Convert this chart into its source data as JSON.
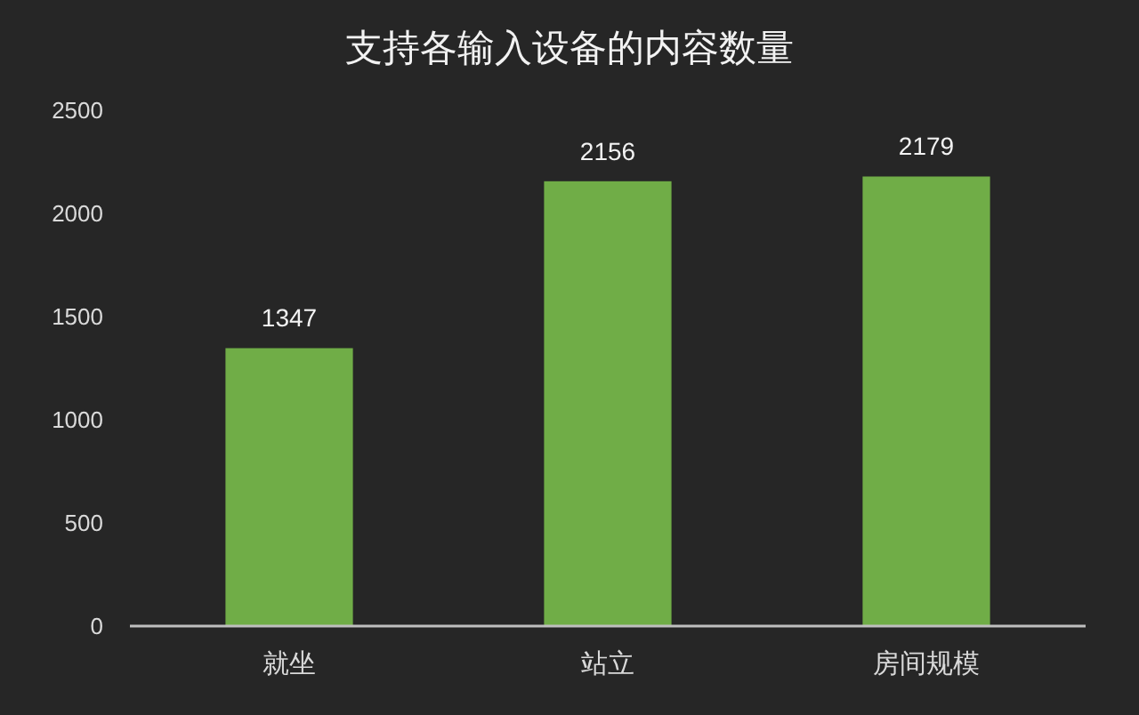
{
  "chart_data": {
    "type": "bar",
    "title": "支持各输入设备的内容数量",
    "categories": [
      "就坐",
      "站立",
      "房间规模"
    ],
    "values": [
      1347,
      2156,
      2179
    ],
    "color": "#70ad47",
    "ylim": [
      0,
      2500
    ],
    "yticks": [
      0,
      500,
      1000,
      1500,
      2000,
      2500
    ],
    "data_labels": true
  }
}
